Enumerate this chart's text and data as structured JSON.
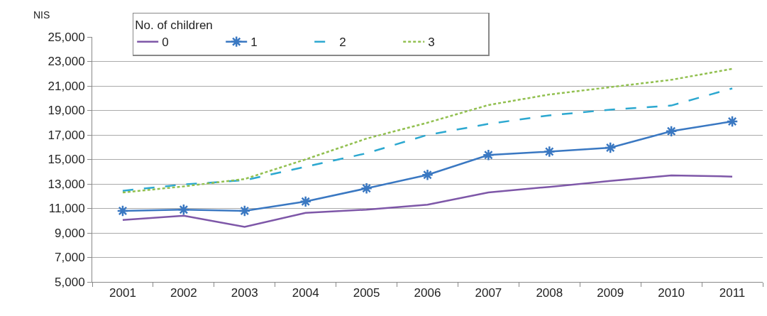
{
  "chart_data": {
    "type": "line",
    "ylabel": "NIS",
    "legend_title": "No. of children",
    "legend": "top left",
    "grid": "y",
    "categories": [
      "2001",
      "2002",
      "2003",
      "2004",
      "2005",
      "2006",
      "2007",
      "2008",
      "2009",
      "2010",
      "2011"
    ],
    "ylim": [
      5000,
      25000
    ],
    "yticks": [
      {
        "value": 5000,
        "label": "5,000"
      },
      {
        "value": 7000,
        "label": "7,000"
      },
      {
        "value": 9000,
        "label": "9,000"
      },
      {
        "value": 11000,
        "label": "11,000"
      },
      {
        "value": 13000,
        "label": "13,000"
      },
      {
        "value": 15000,
        "label": "15,000"
      },
      {
        "value": 17000,
        "label": "17,000"
      },
      {
        "value": 19000,
        "label": "19,000"
      },
      {
        "value": 21000,
        "label": "21,000"
      },
      {
        "value": 23000,
        "label": "23,000"
      },
      {
        "value": 25000,
        "label": "25,000"
      }
    ],
    "series": [
      {
        "name": "0",
        "color": "#7e57a8",
        "line_style": "solid",
        "marker": "none",
        "values": [
          10060,
          10400,
          9500,
          10640,
          10900,
          11300,
          12300,
          12760,
          13240,
          13700,
          13600
        ]
      },
      {
        "name": "1",
        "color": "#3a78c2",
        "line_style": "solid",
        "marker": "cross",
        "values": [
          10800,
          10900,
          10800,
          11560,
          12640,
          13740,
          15360,
          15640,
          15960,
          17300,
          18100
        ]
      },
      {
        "name": "2",
        "color": "#2ca8d0",
        "line_style": "dashed",
        "marker": "none",
        "values": [
          12440,
          12960,
          13300,
          14400,
          15500,
          17000,
          17900,
          18600,
          19060,
          19400,
          20800
        ]
      },
      {
        "name": "3",
        "color": "#92c050",
        "line_style": "dotted",
        "marker": "none",
        "values": [
          12300,
          12800,
          13400,
          15000,
          16700,
          18000,
          19440,
          20300,
          20900,
          21500,
          22400
        ]
      }
    ]
  }
}
